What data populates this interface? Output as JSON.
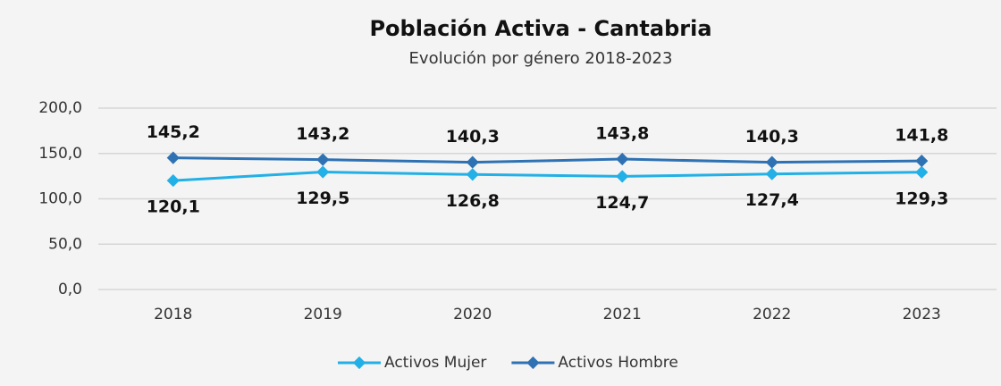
{
  "chart_data": {
    "type": "line",
    "title": "Población Activa - Cantabria",
    "subtitle": "Evolución por género 2018-2023",
    "categories": [
      "2018",
      "2019",
      "2020",
      "2021",
      "2022",
      "2023"
    ],
    "series": [
      {
        "name": "Activos Mujer",
        "color": "#22b0e6",
        "values": [
          120.1,
          129.5,
          126.8,
          124.7,
          127.4,
          129.3
        ],
        "value_labels": [
          "120,1",
          "129,5",
          "126,8",
          "124,7",
          "127,4",
          "129,3"
        ]
      },
      {
        "name": "Activos Hombre",
        "color": "#2f72b3",
        "values": [
          145.2,
          143.2,
          140.3,
          143.8,
          140.3,
          141.8
        ],
        "value_labels": [
          "145,2",
          "143,2",
          "140,3",
          "143,8",
          "140,3",
          "141,8"
        ]
      }
    ],
    "ylim": [
      0,
      200
    ],
    "yticks": [
      {
        "value": 0,
        "label": "0,0"
      },
      {
        "value": 50,
        "label": "50,0"
      },
      {
        "value": 100,
        "label": "100,0"
      },
      {
        "value": 150,
        "label": "150,0"
      },
      {
        "value": 200,
        "label": "200,0"
      }
    ],
    "grid": true,
    "legend": "bottom"
  }
}
